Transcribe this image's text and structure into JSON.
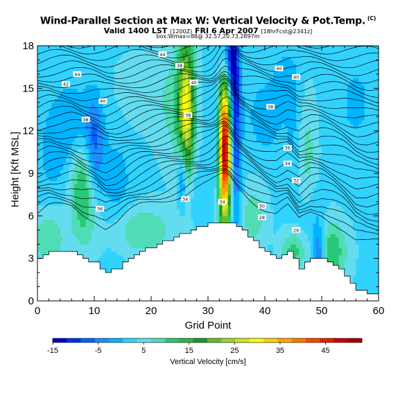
{
  "header": {
    "title": "Wind-Parallel Section at Max W: Vertical Velocity & Pot.Temp.",
    "title_mark": "(C)",
    "valid_main": "Valid 1400 LST",
    "valid_utc": "(1200Z)",
    "valid_date": "FRI 6 Apr 2007",
    "forecast": "[18hrFcst@2341z]",
    "subinfo": "box:Wmax=88@ 32.57,20.73,2897m"
  },
  "chart_data": {
    "type": "heatmap",
    "xlabel": "Grid Point",
    "ylabel": "Height [Kft MSL]",
    "xlim": [
      0,
      60
    ],
    "ylim": [
      0,
      18
    ],
    "x_ticks": [
      "0",
      "10",
      "20",
      "30",
      "40",
      "50",
      "60"
    ],
    "y_ticks": [
      "0",
      "3",
      "6",
      "9",
      "12",
      "15",
      "18"
    ],
    "x_tick_values": [
      0,
      10,
      20,
      30,
      40,
      50,
      60
    ],
    "y_tick_values": [
      0,
      3,
      6,
      9,
      12,
      15,
      18
    ],
    "colorbar": {
      "label": "Vertical Velocity [cm/s]",
      "min": -15,
      "max": 53,
      "tick_labels": [
        "-15",
        "-5",
        "5",
        "15",
        "25",
        "35",
        "45"
      ],
      "tick_values": [
        -15,
        -5,
        5,
        15,
        25,
        35,
        45
      ],
      "colors": [
        "#0000c8",
        "#0032e6",
        "#0064ff",
        "#1e8cff",
        "#00b4ff",
        "#32d2ff",
        "#64dcf0",
        "#50dcb4",
        "#28c878",
        "#32b446",
        "#1e9628",
        "#64be28",
        "#a0d232",
        "#d2e61e",
        "#ffff00",
        "#ffd200",
        "#ffa500",
        "#ff7800",
        "#ff4600",
        "#e61e00",
        "#c80000",
        "#a00000"
      ]
    },
    "terrain": [
      {
        "x": 0,
        "h": 3.0
      },
      {
        "x": 2,
        "h": 3.5
      },
      {
        "x": 6,
        "h": 3.5
      },
      {
        "x": 8,
        "h": 3.0
      },
      {
        "x": 10,
        "h": 2.7
      },
      {
        "x": 12,
        "h": 2.0
      },
      {
        "x": 14,
        "h": 2.3
      },
      {
        "x": 16,
        "h": 3.0
      },
      {
        "x": 18,
        "h": 3.5
      },
      {
        "x": 21,
        "h": 4.0
      },
      {
        "x": 24,
        "h": 4.5
      },
      {
        "x": 26,
        "h": 4.8
      },
      {
        "x": 28,
        "h": 5.2
      },
      {
        "x": 31,
        "h": 5.5
      },
      {
        "x": 34,
        "h": 5.5
      },
      {
        "x": 36,
        "h": 5.0
      },
      {
        "x": 38,
        "h": 4.2
      },
      {
        "x": 40,
        "h": 3.5
      },
      {
        "x": 42,
        "h": 3.0
      },
      {
        "x": 44,
        "h": 3.5
      },
      {
        "x": 46,
        "h": 2.3
      },
      {
        "x": 48,
        "h": 3.0
      },
      {
        "x": 50,
        "h": 3.0
      },
      {
        "x": 52,
        "h": 2.5
      },
      {
        "x": 54,
        "h": 1.8
      },
      {
        "x": 56,
        "h": 0.8
      },
      {
        "x": 58,
        "h": 0.5
      },
      {
        "x": 60,
        "h": 0.5
      }
    ],
    "background_w": 3,
    "features": [
      {
        "x": 8.2,
        "y": 8.0,
        "sx": 1.8,
        "sy": 2.6,
        "w": 12
      },
      {
        "x": 10.0,
        "y": 10.5,
        "sx": 1.2,
        "sy": 2.6,
        "w": -11
      },
      {
        "x": 6.5,
        "y": 12.5,
        "sx": 2.6,
        "sy": 2.0,
        "w": -5
      },
      {
        "x": 3.0,
        "y": 10.0,
        "sx": 3.0,
        "sy": 3.0,
        "w": -3
      },
      {
        "x": 14.0,
        "y": 8.0,
        "sx": 2.0,
        "sy": 3.0,
        "w": -4
      },
      {
        "x": 2.0,
        "y": 4.5,
        "sx": 2.0,
        "sy": 1.5,
        "w": 7
      },
      {
        "x": 18.0,
        "y": 5.0,
        "sx": 4.0,
        "sy": 1.2,
        "w": 7
      },
      {
        "x": 26.2,
        "y": 13.3,
        "sx": 1.0,
        "sy": 3.6,
        "w": 26
      },
      {
        "x": 24.0,
        "y": 14.0,
        "sx": 2.0,
        "sy": 2.8,
        "w": 5
      },
      {
        "x": 25.5,
        "y": 9.0,
        "sx": 0.6,
        "sy": 1.7,
        "w": -12
      },
      {
        "x": 27.0,
        "y": 8.5,
        "sx": 1.0,
        "sy": 2.0,
        "w": -4
      },
      {
        "x": 33.0,
        "y": 10.7,
        "sx": 0.8,
        "sy": 3.6,
        "w": 50
      },
      {
        "x": 34.6,
        "y": 13.0,
        "sx": 0.8,
        "sy": 5.0,
        "w": -17
      },
      {
        "x": 31.5,
        "y": 11.0,
        "sx": 0.8,
        "sy": 3.0,
        "w": -5
      },
      {
        "x": 33.5,
        "y": 17.0,
        "sx": 1.0,
        "sy": 1.5,
        "w": -12
      },
      {
        "x": 40.0,
        "y": 13.0,
        "sx": 2.0,
        "sy": 1.7,
        "w": -5
      },
      {
        "x": 43.5,
        "y": 15.5,
        "sx": 1.6,
        "sy": 1.6,
        "w": -4
      },
      {
        "x": 45.0,
        "y": 12.0,
        "sx": 1.0,
        "sy": 3.0,
        "w": -3
      },
      {
        "x": 47.5,
        "y": 10.0,
        "sx": 1.2,
        "sy": 3.0,
        "w": 5
      },
      {
        "x": 49.5,
        "y": 3.0,
        "sx": 0.8,
        "sy": 1.6,
        "w": -14
      },
      {
        "x": 48.0,
        "y": 6.0,
        "sx": 1.5,
        "sy": 2.0,
        "w": -3
      },
      {
        "x": 51.5,
        "y": 3.5,
        "sx": 2.0,
        "sy": 1.5,
        "w": 10
      },
      {
        "x": 38.0,
        "y": 6.0,
        "sx": 1.5,
        "sy": 1.5,
        "w": 6
      },
      {
        "x": 45.0,
        "y": 3.5,
        "sx": 1.5,
        "sy": 1.0,
        "w": 8
      },
      {
        "x": 56.0,
        "y": 14.0,
        "sx": 3.0,
        "sy": 3.0,
        "w": -3
      },
      {
        "x": 17.0,
        "y": 14.5,
        "sx": 3.0,
        "sy": 2.0,
        "w": 2
      }
    ],
    "theta_labels": [
      {
        "text": "44",
        "x": 22.0,
        "y": 17.4
      },
      {
        "text": "44",
        "x": 7.0,
        "y": 16.0
      },
      {
        "text": "42",
        "x": 5.0,
        "y": 15.3
      },
      {
        "text": "40",
        "x": 11.5,
        "y": 14.1
      },
      {
        "text": "38",
        "x": 8.5,
        "y": 12.8
      },
      {
        "text": "38",
        "x": 25.0,
        "y": 16.6
      },
      {
        "text": "40",
        "x": 27.5,
        "y": 15.4
      },
      {
        "text": "38",
        "x": 26.5,
        "y": 13.1
      },
      {
        "text": "40",
        "x": 42.5,
        "y": 16.4
      },
      {
        "text": "40",
        "x": 45.5,
        "y": 15.8
      },
      {
        "text": "38",
        "x": 41.0,
        "y": 13.7
      },
      {
        "text": "36",
        "x": 44.0,
        "y": 10.8
      },
      {
        "text": "34",
        "x": 44.0,
        "y": 9.7
      },
      {
        "text": "32",
        "x": 45.5,
        "y": 8.5
      },
      {
        "text": "30",
        "x": 39.5,
        "y": 6.7
      },
      {
        "text": "28",
        "x": 39.5,
        "y": 5.9
      },
      {
        "text": "26",
        "x": 45.5,
        "y": 5.0
      },
      {
        "text": "36",
        "x": 11.0,
        "y": 6.5
      },
      {
        "text": "34",
        "x": 26.0,
        "y": 7.2
      },
      {
        "text": "34",
        "x": 32.5,
        "y": 7.0
      }
    ]
  }
}
